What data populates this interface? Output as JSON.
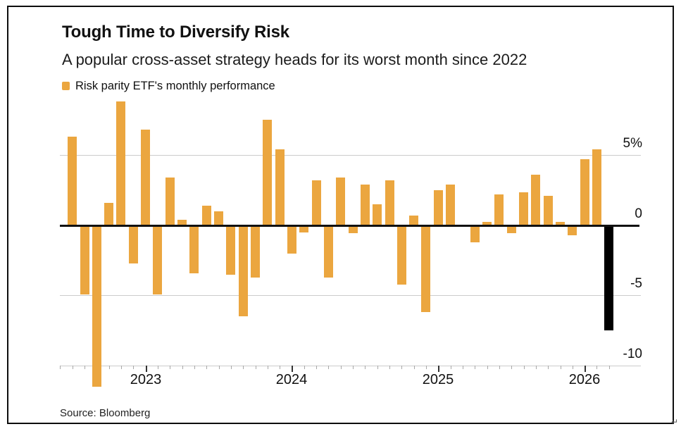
{
  "header": {
    "title": "Tough Time to Diversify Risk",
    "subtitle": "A popular cross-asset strategy heads for its worst month since 2022"
  },
  "legend": {
    "label": "Risk parity ETF's monthly performance",
    "swatch_color": "#EBA63F"
  },
  "source": "Source: Bloomberg",
  "corner_mark": "↵",
  "colors": {
    "bar": "#EBA63F",
    "highlight_bar": "#000000",
    "grid": "#cccccc",
    "zero_line": "#111111"
  },
  "chart_data": {
    "type": "bar",
    "title": "Tough Time to Diversify Risk",
    "subtitle": "A popular cross-asset strategy heads for its worst month since 2022",
    "series_name": "Risk parity ETF's monthly performance",
    "unit": "%",
    "grid": "horizontal",
    "legend_position": "top-left",
    "ylim": [
      -11.6,
      9
    ],
    "x": [
      "Jul 2022",
      "Aug 2022",
      "Sep 2022",
      "Oct 2022",
      "Nov 2022",
      "Dec 2022",
      "Jan 2023",
      "Feb 2023",
      "Mar 2023",
      "Apr 2023",
      "May 2023",
      "Jun 2023",
      "Jul 2023",
      "Aug 2023",
      "Sep 2023",
      "Oct 2023",
      "Nov 2023",
      "Dec 2023",
      "Jan 2024",
      "Feb 2024",
      "Mar 2024",
      "Apr 2024",
      "May 2024",
      "Jun 2024",
      "Jul 2024",
      "Aug 2024",
      "Sep 2024",
      "Oct 2024",
      "Nov 2024",
      "Dec 2024",
      "Jan 2025",
      "Feb 2025",
      "Mar 2025",
      "Apr 2025",
      "May 2025",
      "Jun 2025",
      "Jul 2025",
      "Aug 2025",
      "Sep 2025",
      "Oct 2025",
      "Nov 2025",
      "Dec 2025",
      "Jan 2026",
      "Feb 2026",
      "Mar 2026"
    ],
    "values": [
      6.3,
      -4.9,
      -11.5,
      1.6,
      8.8,
      -2.7,
      6.8,
      -4.9,
      3.4,
      0.4,
      -3.4,
      1.4,
      1.0,
      -3.5,
      -6.5,
      -3.7,
      7.5,
      5.4,
      -2.0,
      -0.5,
      3.2,
      -3.7,
      3.4,
      -0.55,
      2.9,
      1.5,
      3.2,
      -4.2,
      0.7,
      -6.2,
      2.5,
      2.9,
      0.0,
      -1.2,
      0.25,
      2.2,
      -0.55,
      2.35,
      3.6,
      2.1,
      0.25,
      -0.7,
      4.7,
      5.4,
      -7.5
    ],
    "highlight_index": 44,
    "y_ticks": [
      {
        "label": "5%",
        "value": 5
      },
      {
        "label": "0",
        "value": 0
      },
      {
        "label": "-5",
        "value": -5
      },
      {
        "label": "-10",
        "value": -10
      }
    ],
    "x_year_labels": [
      {
        "label": "2023",
        "month_index": 6
      },
      {
        "label": "2024",
        "month_index": 18
      },
      {
        "label": "2025",
        "month_index": 30
      },
      {
        "label": "2026",
        "month_index": 42
      }
    ]
  }
}
